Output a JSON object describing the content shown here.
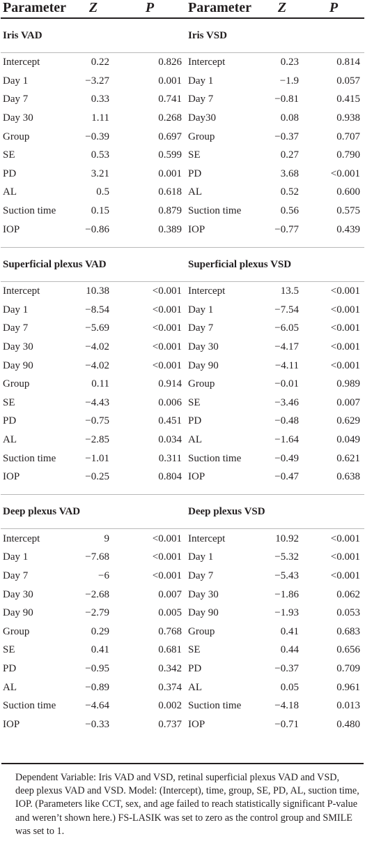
{
  "headers": {
    "left_param": "Parameter",
    "left_z": "Z",
    "left_p": "P",
    "right_param": "Parameter",
    "right_z": "Z",
    "right_p": "P"
  },
  "sections": [
    {
      "left_title": "Iris VAD",
      "right_title": "Iris VSD",
      "rows": [
        {
          "ln": "Intercept",
          "lz": "0.22",
          "lp": "0.826",
          "rn": "Intercept",
          "rz": "0.23",
          "rp": "0.814"
        },
        {
          "ln": "Day 1",
          "lz": "−3.27",
          "lp": "0.001",
          "rn": "Day 1",
          "rz": "−1.9",
          "rp": "0.057"
        },
        {
          "ln": "Day 7",
          "lz": "0.33",
          "lp": "0.741",
          "rn": "Day 7",
          "rz": "−0.81",
          "rp": "0.415"
        },
        {
          "ln": "Day 30",
          "lz": "1.11",
          "lp": "0.268",
          "rn": "Day30",
          "rz": "0.08",
          "rp": "0.938"
        },
        {
          "ln": "Group",
          "lz": "−0.39",
          "lp": "0.697",
          "rn": "Group",
          "rz": "−0.37",
          "rp": "0.707"
        },
        {
          "ln": "SE",
          "lz": "0.53",
          "lp": "0.599",
          "rn": "SE",
          "rz": "0.27",
          "rp": "0.790"
        },
        {
          "ln": "PD",
          "lz": "3.21",
          "lp": "0.001",
          "rn": "PD",
          "rz": "3.68",
          "rp": "<0.001"
        },
        {
          "ln": "AL",
          "lz": "0.5",
          "lp": "0.618",
          "rn": "AL",
          "rz": "0.52",
          "rp": "0.600"
        },
        {
          "ln": "Suction time",
          "lz": "0.15",
          "lp": "0.879",
          "rn": "Suction time",
          "rz": "0.56",
          "rp": "0.575"
        },
        {
          "ln": "IOP",
          "lz": "−0.86",
          "lp": "0.389",
          "rn": "IOP",
          "rz": "−0.77",
          "rp": "0.439"
        }
      ]
    },
    {
      "left_title": "Superficial plexus VAD",
      "right_title": "Superficial plexus VSD",
      "rows": [
        {
          "ln": "Intercept",
          "lz": "10.38",
          "lp": "<0.001",
          "rn": "Intercept",
          "rz": "13.5",
          "rp": "<0.001"
        },
        {
          "ln": "Day 1",
          "lz": "−8.54",
          "lp": "<0.001",
          "rn": "Day 1",
          "rz": "−7.54",
          "rp": "<0.001"
        },
        {
          "ln": "Day 7",
          "lz": "−5.69",
          "lp": "<0.001",
          "rn": "Day 7",
          "rz": "−6.05",
          "rp": "<0.001"
        },
        {
          "ln": "Day 30",
          "lz": "−4.02",
          "lp": "<0.001",
          "rn": "Day 30",
          "rz": "−4.17",
          "rp": "<0.001"
        },
        {
          "ln": "Day 90",
          "lz": "−4.02",
          "lp": "<0.001",
          "rn": "Day 90",
          "rz": "−4.11",
          "rp": "<0.001"
        },
        {
          "ln": "Group",
          "lz": "0.11",
          "lp": "0.914",
          "rn": "Group",
          "rz": "−0.01",
          "rp": "0.989"
        },
        {
          "ln": "SE",
          "lz": "−4.43",
          "lp": "0.006",
          "rn": "SE",
          "rz": "−3.46",
          "rp": "0.007"
        },
        {
          "ln": "PD",
          "lz": "−0.75",
          "lp": "0.451",
          "rn": "PD",
          "rz": "−0.48",
          "rp": "0.629"
        },
        {
          "ln": "AL",
          "lz": "−2.85",
          "lp": "0.034",
          "rn": "AL",
          "rz": "−1.64",
          "rp": "0.049"
        },
        {
          "ln": "Suction time",
          "lz": "−1.01",
          "lp": "0.311",
          "rn": "Suction time",
          "rz": "−0.49",
          "rp": "0.621"
        },
        {
          "ln": "IOP",
          "lz": "−0.25",
          "lp": "0.804",
          "rn": "IOP",
          "rz": "−0.47",
          "rp": "0.638"
        }
      ]
    },
    {
      "left_title": "Deep plexus VAD",
      "right_title": "Deep plexus VSD",
      "rows": [
        {
          "ln": "Intercept",
          "lz": "9",
          "lp": "<0.001",
          "rn": "Intercept",
          "rz": "10.92",
          "rp": "<0.001"
        },
        {
          "ln": "Day 1",
          "lz": "−7.68",
          "lp": "<0.001",
          "rn": "Day 1",
          "rz": "−5.32",
          "rp": "<0.001"
        },
        {
          "ln": "Day 7",
          "lz": "−6",
          "lp": "<0.001",
          "rn": "Day 7",
          "rz": "−5.43",
          "rp": "<0.001"
        },
        {
          "ln": "Day 30",
          "lz": "−2.68",
          "lp": "0.007",
          "rn": "Day 30",
          "rz": "−1.86",
          "rp": "0.062"
        },
        {
          "ln": "Day 90",
          "lz": "−2.79",
          "lp": "0.005",
          "rn": "Day 90",
          "rz": "−1.93",
          "rp": "0.053"
        },
        {
          "ln": "Group",
          "lz": "0.29",
          "lp": "0.768",
          "rn": "Group",
          "rz": "0.41",
          "rp": "0.683"
        },
        {
          "ln": "SE",
          "lz": "0.41",
          "lp": "0.681",
          "rn": "SE",
          "rz": "0.44",
          "rp": "0.656"
        },
        {
          "ln": "PD",
          "lz": "−0.95",
          "lp": "0.342",
          "rn": "PD",
          "rz": "−0.37",
          "rp": "0.709"
        },
        {
          "ln": "AL",
          "lz": "−0.89",
          "lp": "0.374",
          "rn": "AL",
          "rz": "0.05",
          "rp": "0.961"
        },
        {
          "ln": "Suction time",
          "lz": "−4.64",
          "lp": "0.002",
          "rn": "Suction time",
          "rz": "−4.18",
          "rp": "0.013"
        },
        {
          "ln": "IOP",
          "lz": "−0.33",
          "lp": "0.737",
          "rn": "IOP",
          "rz": "−0.71",
          "rp": "0.480"
        }
      ]
    }
  ],
  "footnote": "Dependent Variable: Iris VAD and VSD, retinal superficial plexus VAD and VSD, deep plexus VAD and VSD. Model: (Intercept), time, group, SE, PD, AL, suction time, IOP. (Parameters like CCT, sex, and age failed to reach statistically significant P-value and weren’t shown here.) FS-LASIK was set to zero as the control group and SMILE was set to 1."
}
